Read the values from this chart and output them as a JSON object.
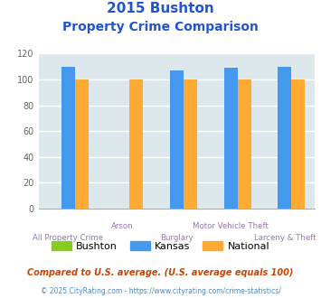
{
  "title_line1": "2015 Bushton",
  "title_line2": "Property Crime Comparison",
  "categories": [
    "All Property Crime",
    "Arson",
    "Burglary",
    "Motor Vehicle Theft",
    "Larceny & Theft"
  ],
  "series": {
    "Bushton": [
      0,
      0,
      0,
      0,
      0
    ],
    "Kansas": [
      110,
      0,
      107,
      109,
      110
    ],
    "National": [
      100,
      100,
      100,
      100,
      100
    ]
  },
  "colors": {
    "Bushton": "#88cc22",
    "Kansas": "#4499ee",
    "National": "#ffaa33"
  },
  "ylim": [
    0,
    120
  ],
  "yticks": [
    0,
    20,
    40,
    60,
    80,
    100,
    120
  ],
  "bg_color": "#dde8ec",
  "grid_color": "#ffffff",
  "title_color": "#2255cc",
  "xlabel_bottom_color": "#9977aa",
  "xlabel_top_color": "#9977aa",
  "footnote1": "Compared to U.S. average. (U.S. average equals 100)",
  "footnote2": "© 2025 CityRating.com - https://www.cityrating.com/crime-statistics/",
  "footnote1_color": "#cc4400",
  "footnote2_color": "#5588bb",
  "bottom_labels": [
    "All Property Crime",
    "",
    "Burglary",
    "",
    "Larceny & Theft"
  ],
  "top_labels": [
    "",
    "Arson",
    "",
    "Motor Vehicle Theft",
    ""
  ]
}
